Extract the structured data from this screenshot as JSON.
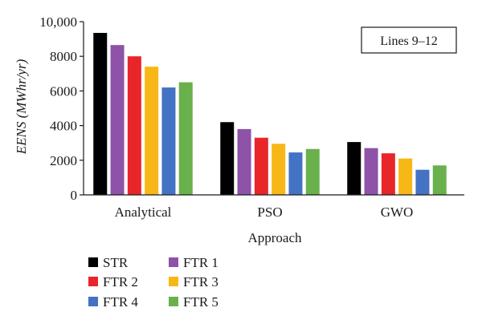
{
  "chart_data": {
    "type": "bar",
    "categories": [
      "Analytical",
      "PSO",
      "GWO"
    ],
    "series": [
      {
        "name": "STR",
        "color": "#000000",
        "values": [
          9350,
          4200,
          3050
        ]
      },
      {
        "name": "FTR 1",
        "color": "#8e52a8",
        "values": [
          8650,
          3800,
          2700
        ]
      },
      {
        "name": "FTR 2",
        "color": "#e8262a",
        "values": [
          8000,
          3300,
          2400
        ]
      },
      {
        "name": "FTR 3",
        "color": "#f7b716",
        "values": [
          7400,
          2950,
          2100
        ]
      },
      {
        "name": "FTR 4",
        "color": "#4472c4",
        "values": [
          6200,
          2450,
          1450
        ]
      },
      {
        "name": "FTR 5",
        "color": "#6ab04c",
        "values": [
          6500,
          2650,
          1700
        ]
      }
    ],
    "xlabel": "Approach",
    "ylabel": "EENS (MWhr/yr)",
    "ylim": [
      0,
      10000
    ],
    "yticks": [
      "0",
      "2000",
      "4000",
      "6000",
      "8000",
      "10,000"
    ],
    "annotation": "Lines 9–12",
    "grid": false,
    "legend_position": "bottom-left"
  }
}
